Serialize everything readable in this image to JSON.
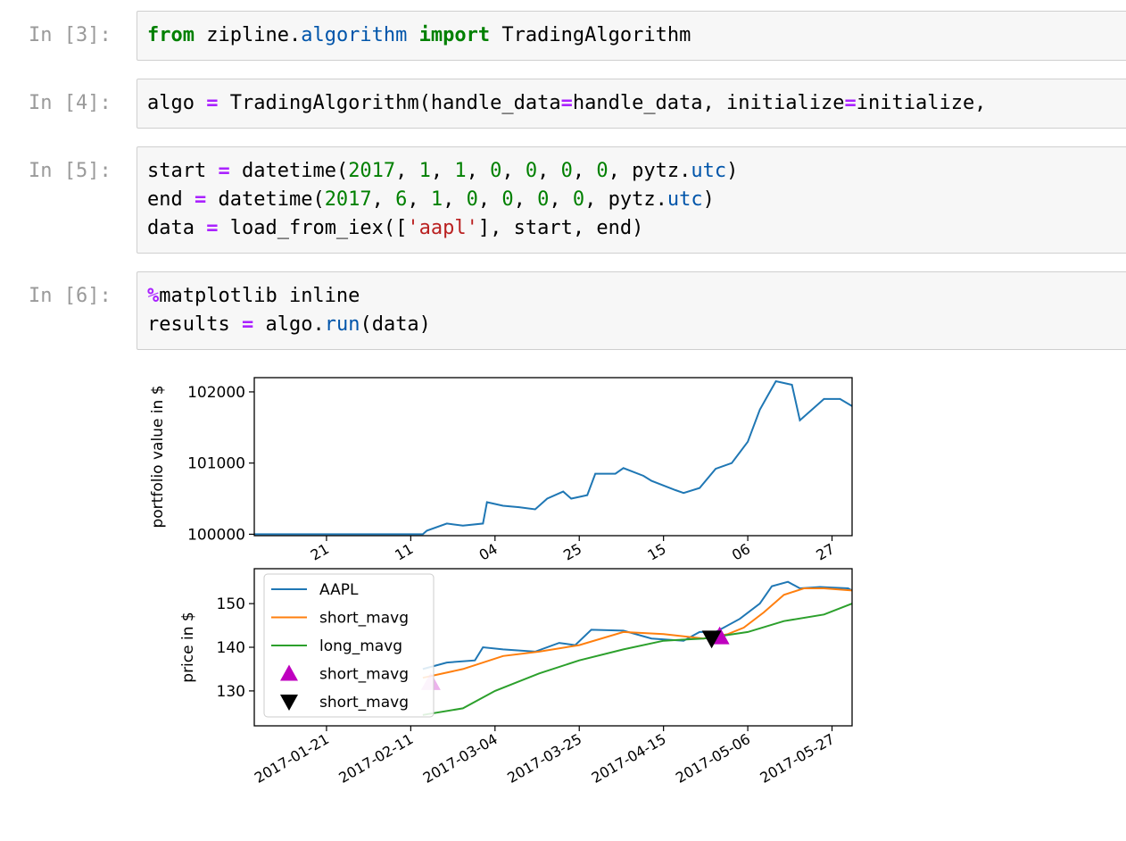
{
  "cells": [
    {
      "prompt": "In [3]:",
      "tokens": [
        [
          "from",
          "kw"
        ],
        [
          " zipline.",
          ""
        ],
        [
          "algorithm",
          "mod"
        ],
        [
          " ",
          ""
        ],
        [
          "import",
          "kw"
        ],
        [
          " TradingAlgorithm",
          ""
        ]
      ]
    },
    {
      "prompt": "In [4]:",
      "tokens": [
        [
          "algo ",
          ""
        ],
        [
          "=",
          "op"
        ],
        [
          " TradingAlgorithm(handle_data",
          ""
        ],
        [
          "=",
          "op"
        ],
        [
          "handle_data, initialize",
          ""
        ],
        [
          "=",
          "op"
        ],
        [
          "initialize,",
          ""
        ]
      ]
    },
    {
      "prompt": "In [5]:",
      "tokens": [
        [
          "start ",
          ""
        ],
        [
          "=",
          "op"
        ],
        [
          " datetime(",
          ""
        ],
        [
          "2017",
          "num"
        ],
        [
          ", ",
          ""
        ],
        [
          "1",
          "num"
        ],
        [
          ", ",
          ""
        ],
        [
          "1",
          "num"
        ],
        [
          ", ",
          ""
        ],
        [
          "0",
          "num"
        ],
        [
          ", ",
          ""
        ],
        [
          "0",
          "num"
        ],
        [
          ", ",
          ""
        ],
        [
          "0",
          "num"
        ],
        [
          ", ",
          ""
        ],
        [
          "0",
          "num"
        ],
        [
          ", pytz.",
          ""
        ],
        [
          "utc",
          "attr"
        ],
        [
          ")\n",
          ""
        ],
        [
          "end ",
          ""
        ],
        [
          "=",
          "op"
        ],
        [
          " datetime(",
          ""
        ],
        [
          "2017",
          "num"
        ],
        [
          ", ",
          ""
        ],
        [
          "6",
          "num"
        ],
        [
          ", ",
          ""
        ],
        [
          "1",
          "num"
        ],
        [
          ", ",
          ""
        ],
        [
          "0",
          "num"
        ],
        [
          ", ",
          ""
        ],
        [
          "0",
          "num"
        ],
        [
          ", ",
          ""
        ],
        [
          "0",
          "num"
        ],
        [
          ", ",
          ""
        ],
        [
          "0",
          "num"
        ],
        [
          ", pytz.",
          ""
        ],
        [
          "utc",
          "attr"
        ],
        [
          ")\n",
          ""
        ],
        [
          "data ",
          ""
        ],
        [
          "=",
          "op"
        ],
        [
          " load_from_iex([",
          ""
        ],
        [
          "'aapl'",
          "str"
        ],
        [
          "], start, end)",
          ""
        ]
      ]
    },
    {
      "prompt": "In [6]:",
      "tokens": [
        [
          "%",
          "op"
        ],
        [
          "matplotlib inline\n",
          ""
        ],
        [
          "results ",
          ""
        ],
        [
          "=",
          "op"
        ],
        [
          " algo.",
          ""
        ],
        [
          "run",
          "attr"
        ],
        [
          "(data)",
          ""
        ]
      ]
    }
  ],
  "chart_data": [
    {
      "type": "line",
      "ylabel": "portfolio value in $",
      "yticks": [
        100000,
        101000,
        102000
      ],
      "ylim": [
        99980,
        102200
      ],
      "x_tick_labels": [
        "21",
        "11",
        "04",
        "25",
        "15",
        "06",
        "27"
      ],
      "series": [
        {
          "color": "#1f77b4",
          "x": [
            "2017-01-03",
            "2017-02-14",
            "2017-02-15",
            "2017-02-20",
            "2017-02-24",
            "2017-03-01",
            "2017-03-02",
            "2017-03-06",
            "2017-03-10",
            "2017-03-14",
            "2017-03-17",
            "2017-03-21",
            "2017-03-23",
            "2017-03-27",
            "2017-03-29",
            "2017-04-03",
            "2017-04-05",
            "2017-04-10",
            "2017-04-12",
            "2017-04-18",
            "2017-04-20",
            "2017-04-24",
            "2017-04-28",
            "2017-05-02",
            "2017-05-06",
            "2017-05-09",
            "2017-05-11",
            "2017-05-13",
            "2017-05-17",
            "2017-05-19",
            "2017-05-23",
            "2017-05-25",
            "2017-05-29",
            "2017-06-01"
          ],
          "y": [
            100000,
            100000,
            100050,
            100150,
            100120,
            100150,
            100450,
            100400,
            100380,
            100350,
            100500,
            100600,
            100500,
            100550,
            100850,
            100850,
            100930,
            100820,
            100750,
            100620,
            100580,
            100650,
            100920,
            101000,
            101300,
            101750,
            101950,
            102150,
            102100,
            101600,
            101800,
            101900,
            101900,
            101800
          ]
        }
      ]
    },
    {
      "type": "line",
      "ylabel": "price in $",
      "yticks": [
        130,
        140,
        150
      ],
      "ylim": [
        122,
        158
      ],
      "x_tick_labels": [
        "2017-01-21",
        "2017-02-11",
        "2017-03-04",
        "2017-03-25",
        "2017-04-15",
        "2017-05-06",
        "2017-05-27"
      ],
      "legend_position": "top-left",
      "series": [
        {
          "name": "AAPL",
          "color": "#1f77b4",
          "x": [
            "2017-02-14",
            "2017-02-20",
            "2017-02-27",
            "2017-03-01",
            "2017-03-06",
            "2017-03-14",
            "2017-03-20",
            "2017-03-24",
            "2017-03-28",
            "2017-04-05",
            "2017-04-12",
            "2017-04-20",
            "2017-04-24",
            "2017-04-28",
            "2017-05-04",
            "2017-05-09",
            "2017-05-12",
            "2017-05-16",
            "2017-05-19",
            "2017-05-24",
            "2017-05-31",
            "2017-06-01"
          ],
          "y": [
            135,
            136.5,
            137,
            140,
            139.5,
            139,
            141,
            140.5,
            144,
            143.8,
            142,
            141.5,
            143.5,
            143.5,
            146.5,
            150,
            154,
            155,
            153.5,
            153.8,
            153.5,
            153
          ]
        },
        {
          "name": "short_mavg",
          "color": "#ff7f0e",
          "x": [
            "2017-02-14",
            "2017-02-24",
            "2017-03-06",
            "2017-03-15",
            "2017-03-25",
            "2017-04-05",
            "2017-04-15",
            "2017-04-25",
            "2017-05-01",
            "2017-05-05",
            "2017-05-10",
            "2017-05-15",
            "2017-05-20",
            "2017-05-25",
            "2017-06-01"
          ],
          "y": [
            133,
            135,
            138,
            139,
            140.5,
            143.5,
            143,
            142,
            143,
            144.5,
            148,
            152,
            153.5,
            153.5,
            153
          ]
        },
        {
          "name": "long_mavg",
          "color": "#2ca02c",
          "x": [
            "2017-02-14",
            "2017-02-24",
            "2017-03-04",
            "2017-03-15",
            "2017-03-25",
            "2017-04-05",
            "2017-04-15",
            "2017-04-25",
            "2017-05-06",
            "2017-05-15",
            "2017-05-25",
            "2017-06-01"
          ],
          "y": [
            124.5,
            126,
            130,
            134,
            137,
            139.5,
            141.5,
            142,
            143.5,
            146,
            147.5,
            150
          ]
        }
      ],
      "markers": [
        {
          "name": "short_mavg",
          "shape": "triangle-up",
          "color": "#bf00bf",
          "points": [
            {
              "x": "2017-02-16",
              "y": 132,
              "alpha": 0.3
            },
            {
              "x": "2017-04-29",
              "y": 142.5,
              "alpha": 1
            }
          ]
        },
        {
          "name": "short_mavg",
          "shape": "triangle-down",
          "color": "#000000",
          "points": [
            {
              "x": "2017-04-27",
              "y": 142,
              "alpha": 1
            }
          ]
        }
      ],
      "legend": [
        "AAPL",
        "short_mavg",
        "long_mavg",
        "short_mavg",
        "short_mavg"
      ]
    }
  ]
}
